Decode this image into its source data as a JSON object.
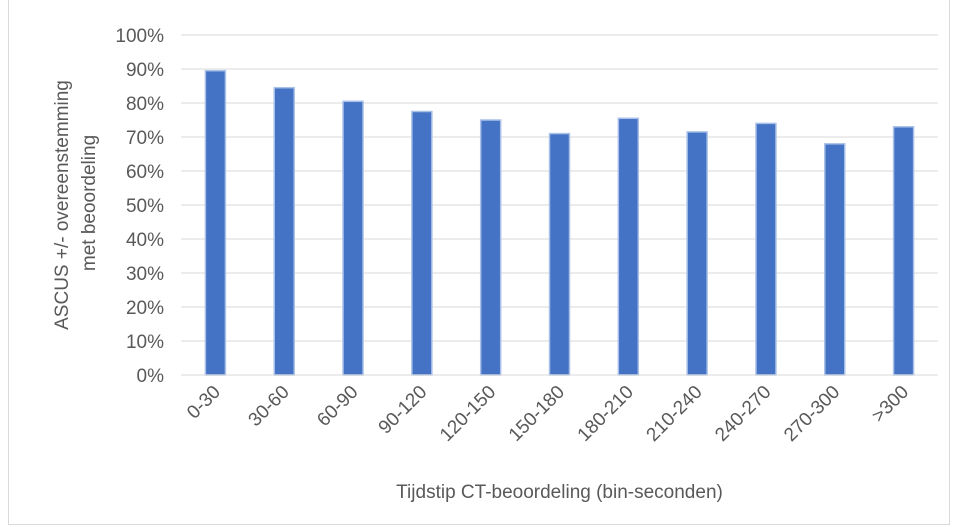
{
  "chart_data": {
    "type": "bar",
    "title": "",
    "xlabel": "Tijdstip CT-beoordeling (bin-seconden)",
    "ylabel": [
      "ASCUS +/- overeenstemming",
      "met beoordeling"
    ],
    "categories": [
      "0-30",
      "30-60",
      "60-90",
      "90-120",
      "120-150",
      "150-180",
      "180-210",
      "210-240",
      "240-270",
      "270-300",
      ">300"
    ],
    "values": [
      89.5,
      84.5,
      80.5,
      77.5,
      75,
      71,
      75.5,
      71.5,
      74,
      68,
      73
    ],
    "ylim": [
      0,
      100
    ],
    "yticks": [
      "0%",
      "10%",
      "20%",
      "30%",
      "40%",
      "50%",
      "60%",
      "70%",
      "80%",
      "90%",
      "100%"
    ],
    "grid": true,
    "legend": "none",
    "colors": {
      "bar": "#4472c4",
      "bar_edge": "#a9c1e8",
      "grid": "#d9d9d9",
      "text": "#595959"
    }
  }
}
